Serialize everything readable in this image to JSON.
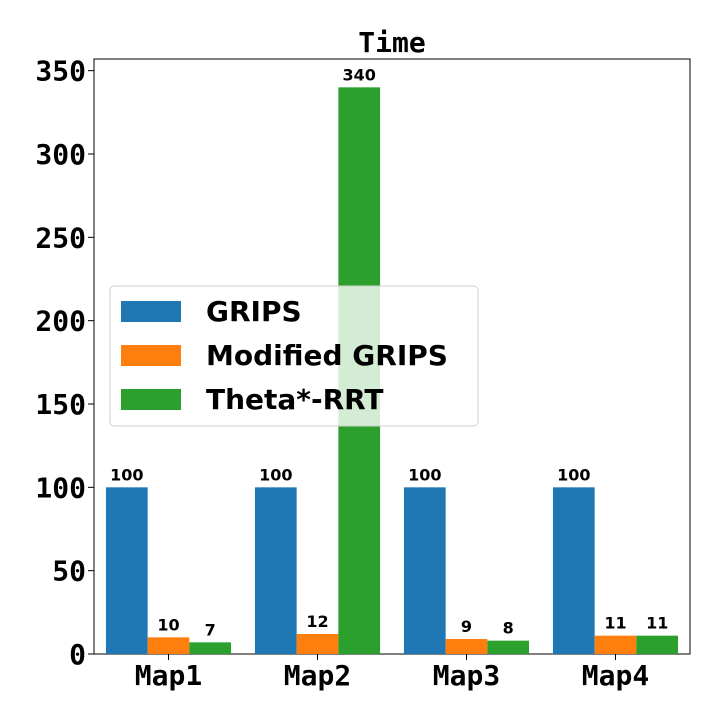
{
  "chart_data": {
    "type": "bar",
    "title": "Time",
    "xlabel": "",
    "ylabel": "",
    "categories": [
      "Map1",
      "Map2",
      "Map3",
      "Map4"
    ],
    "series": [
      {
        "name": "GRIPS",
        "values": [
          100,
          100,
          100,
          100
        ],
        "color": "#1f77b4"
      },
      {
        "name": "Modified GRIPS",
        "values": [
          10,
          12,
          9,
          11
        ],
        "color": "#ff7f0e"
      },
      {
        "name": "Theta*-RRT",
        "values": [
          7,
          340,
          8,
          11
        ],
        "color": "#2ca02c"
      }
    ],
    "ylim": [
      0,
      357
    ],
    "yticks": [
      "0",
      "50",
      "100",
      "150",
      "200",
      "250",
      "300",
      "350"
    ],
    "grid": false,
    "legend_position": "center-left"
  }
}
